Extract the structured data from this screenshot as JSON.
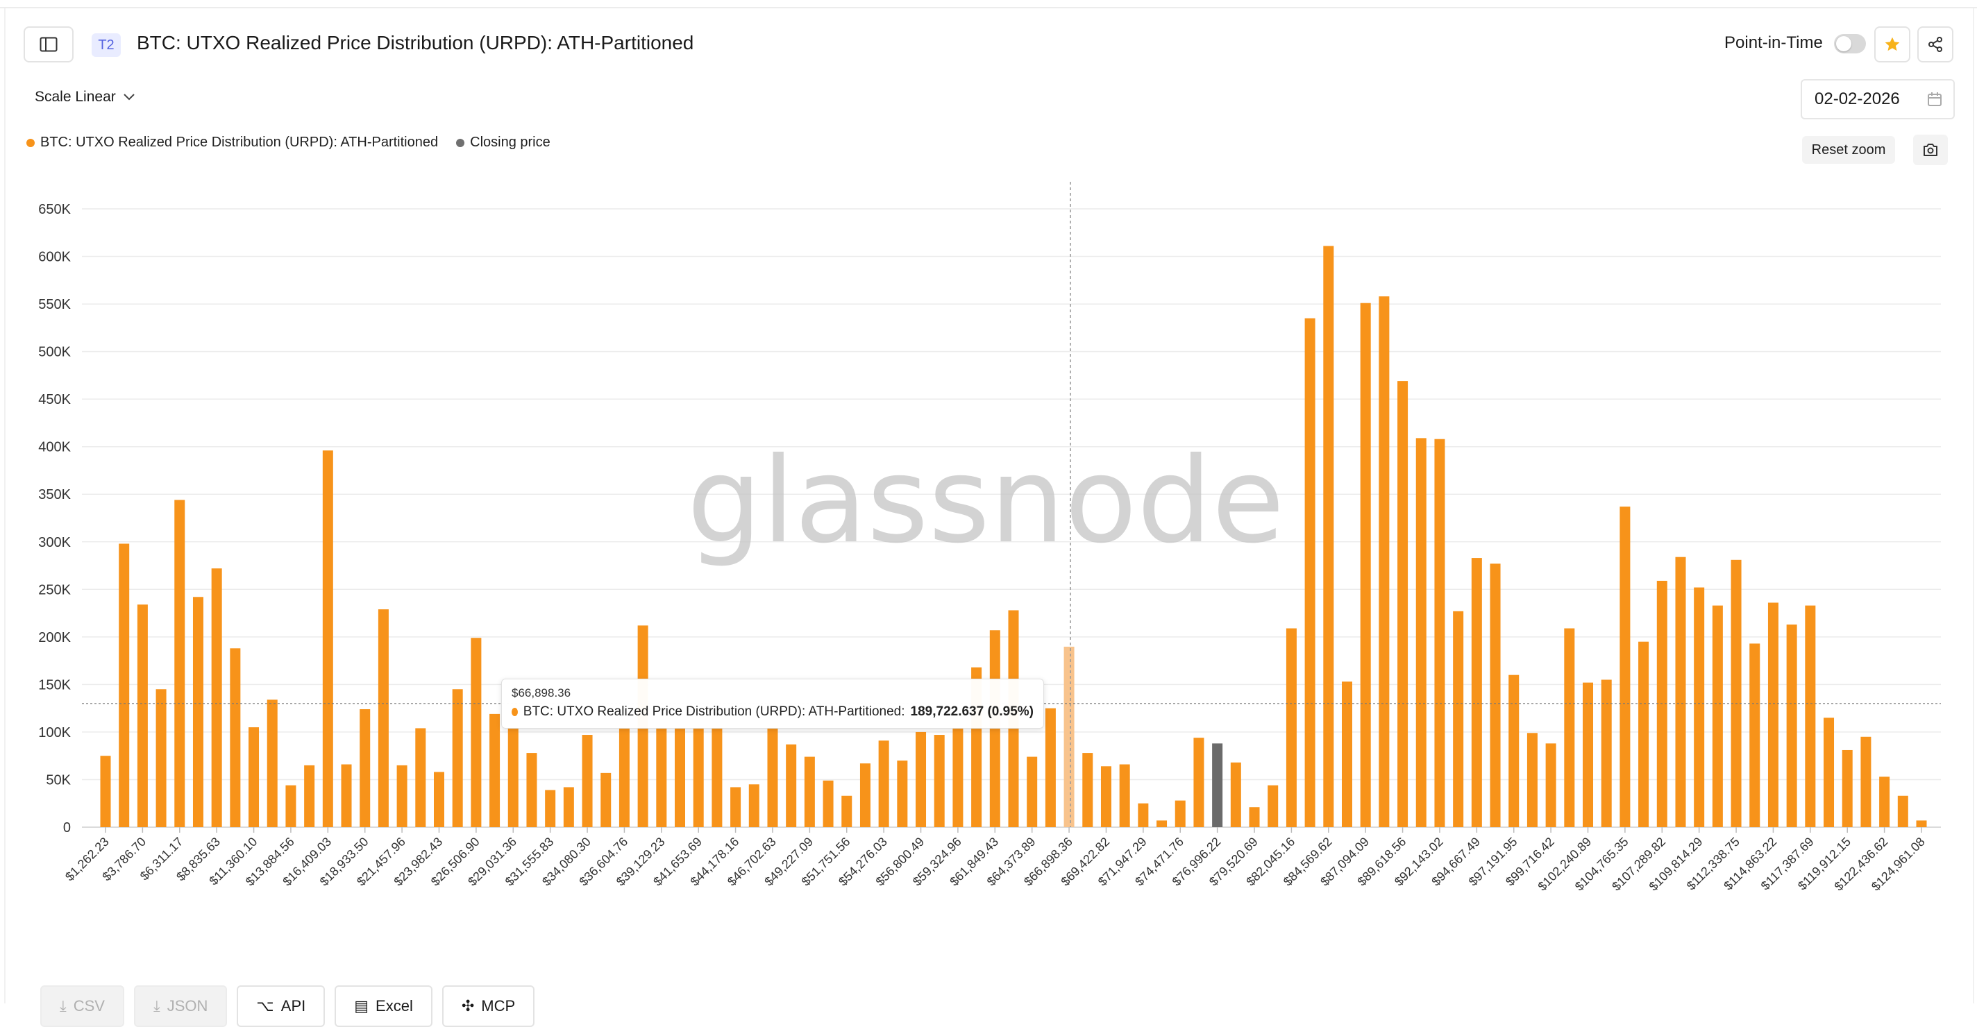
{
  "header": {
    "tier_badge": "T2",
    "title": "BTC: UTXO Realized Price Distribution (URPD): ATH-Partitioned",
    "point_in_time_label": "Point-in-Time"
  },
  "controls": {
    "scale_label": "Scale Linear",
    "date_value": "02-02-2026",
    "reset_zoom_label": "Reset zoom"
  },
  "legend": [
    {
      "label": "BTC: UTXO Realized Price Distribution (URPD): ATH-Partitioned",
      "color": "#f7931a"
    },
    {
      "label": "Closing price",
      "color": "#707070"
    }
  ],
  "watermark": "glassnode",
  "tooltip": {
    "date": "$66,898.36",
    "series": "BTC: UTXO Realized Price Distribution (URPD): ATH-Partitioned:",
    "value": "189,722.637 (0.95%)"
  },
  "export": {
    "csv": "CSV",
    "json": "JSON",
    "api": "API",
    "excel": "Excel",
    "mcp": "MCP"
  },
  "colors": {
    "bar": "#f7931a",
    "closing_bar": "#6b6b6b",
    "hover_bar": "#f8c38c"
  },
  "chart_data": {
    "type": "bar",
    "ylim": [
      0,
      680000
    ],
    "y_ticks": [
      {
        "label": "0",
        "value": 0
      },
      {
        "label": "50K",
        "value": 50000
      },
      {
        "label": "100K",
        "value": 100000
      },
      {
        "label": "150K",
        "value": 150000
      },
      {
        "label": "200K",
        "value": 200000
      },
      {
        "label": "250K",
        "value": 250000
      },
      {
        "label": "300K",
        "value": 300000
      },
      {
        "label": "350K",
        "value": 350000
      },
      {
        "label": "400K",
        "value": 400000
      },
      {
        "label": "450K",
        "value": 450000
      },
      {
        "label": "500K",
        "value": 500000
      },
      {
        "label": "550K",
        "value": 550000
      },
      {
        "label": "600K",
        "value": 600000
      },
      {
        "label": "650K",
        "value": 650000
      }
    ],
    "x_tick_labels": [
      {
        "index": 0,
        "label": "$1,262.23"
      },
      {
        "index": 2,
        "label": "$3,786.70"
      },
      {
        "index": 4,
        "label": "$6,311.17"
      },
      {
        "index": 6,
        "label": "$8,835.63"
      },
      {
        "index": 8,
        "label": "$11,360.10"
      },
      {
        "index": 10,
        "label": "$13,884.56"
      },
      {
        "index": 12,
        "label": "$16,409.03"
      },
      {
        "index": 14,
        "label": "$18,933.50"
      },
      {
        "index": 16,
        "label": "$21,457.96"
      },
      {
        "index": 18,
        "label": "$23,982.43"
      },
      {
        "index": 20,
        "label": "$26,506.90"
      },
      {
        "index": 22,
        "label": "$29,031.36"
      },
      {
        "index": 24,
        "label": "$31,555.83"
      },
      {
        "index": 26,
        "label": "$34,080.30"
      },
      {
        "index": 28,
        "label": "$36,604.76"
      },
      {
        "index": 30,
        "label": "$39,129.23"
      },
      {
        "index": 32,
        "label": "$41,653.69"
      },
      {
        "index": 34,
        "label": "$44,178.16"
      },
      {
        "index": 36,
        "label": "$46,702.63"
      },
      {
        "index": 38,
        "label": "$49,227.09"
      },
      {
        "index": 40,
        "label": "$51,751.56"
      },
      {
        "index": 42,
        "label": "$54,276.03"
      },
      {
        "index": 44,
        "label": "$56,800.49"
      },
      {
        "index": 46,
        "label": "$59,324.96"
      },
      {
        "index": 48,
        "label": "$61,849.43"
      },
      {
        "index": 50,
        "label": "$64,373.89"
      },
      {
        "index": 52,
        "label": "$66,898.36"
      },
      {
        "index": 54,
        "label": "$69,422.82"
      },
      {
        "index": 56,
        "label": "$71,947.29"
      },
      {
        "index": 58,
        "label": "$74,471.76"
      },
      {
        "index": 60,
        "label": "$76,996.22"
      },
      {
        "index": 62,
        "label": "$79,520.69"
      },
      {
        "index": 64,
        "label": "$82,045.16"
      },
      {
        "index": 66,
        "label": "$84,569.62"
      },
      {
        "index": 68,
        "label": "$87,094.09"
      },
      {
        "index": 70,
        "label": "$89,618.56"
      },
      {
        "index": 72,
        "label": "$92,143.02"
      },
      {
        "index": 74,
        "label": "$94,667.49"
      },
      {
        "index": 76,
        "label": "$97,191.95"
      },
      {
        "index": 78,
        "label": "$99,716.42"
      },
      {
        "index": 80,
        "label": "$102,240.89"
      },
      {
        "index": 82,
        "label": "$104,765.35"
      },
      {
        "index": 84,
        "label": "$107,289.82"
      },
      {
        "index": 86,
        "label": "$109,814.29"
      },
      {
        "index": 88,
        "label": "$112,338.75"
      },
      {
        "index": 90,
        "label": "$114,863.22"
      },
      {
        "index": 92,
        "label": "$117,387.69"
      },
      {
        "index": 94,
        "label": "$119,912.15"
      },
      {
        "index": 96,
        "label": "$122,436.62"
      },
      {
        "index": 98,
        "label": "$124,961.08"
      }
    ],
    "values": [
      75000,
      298000,
      234000,
      145000,
      344000,
      242000,
      272000,
      188000,
      105000,
      134000,
      44000,
      65000,
      396000,
      66000,
      124000,
      229000,
      65000,
      104000,
      58000,
      145000,
      199000,
      119000,
      104000,
      78000,
      39000,
      42000,
      97000,
      57000,
      104000,
      212000,
      104000,
      104000,
      104000,
      104000,
      42000,
      45000,
      104000,
      87000,
      74000,
      49000,
      33000,
      67000,
      91000,
      70000,
      100000,
      97000,
      104000,
      168000,
      207000,
      228000,
      74000,
      125000,
      189722.637,
      78000,
      64000,
      66000,
      25000,
      7000,
      28000,
      94000,
      88000,
      68000,
      21000,
      44000,
      209000,
      535000,
      611000,
      153000,
      551000,
      558000,
      469000,
      409000,
      408000,
      227000,
      283000,
      277000,
      160000,
      99000,
      88000,
      209000,
      152000,
      155000,
      337000,
      195000,
      259000,
      284000,
      252000,
      233000,
      281000,
      193000,
      236000,
      213000,
      233000,
      115000,
      81000,
      95000,
      53000,
      33000,
      7000
    ],
    "hover_index": 52,
    "closing_price_index": 60,
    "closing_price_level": 130000
  }
}
